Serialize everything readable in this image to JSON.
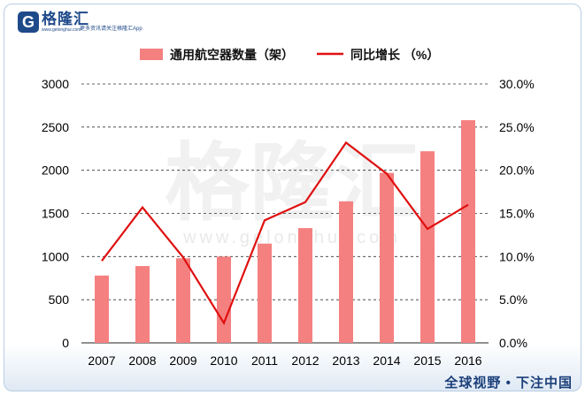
{
  "branding": {
    "logo_letter": "G",
    "logo_name": "格隆汇",
    "logo_url": "www.gelonghui.com",
    "slogan": "更多资讯请关注格隆汇App",
    "watermark_cn": "格隆汇",
    "watermark_en": "www.gelonghui.com",
    "footer": "全球视野 • 下注中国"
  },
  "colors": {
    "bar": "#f58080",
    "line": "#e01010",
    "grid": "#333333"
  },
  "chart_data": {
    "type": "bar",
    "categories": [
      "2007",
      "2008",
      "2009",
      "2010",
      "2011",
      "2012",
      "2013",
      "2014",
      "2015",
      "2016"
    ],
    "series": [
      {
        "name": "通用航空器数量（架）",
        "type": "bar",
        "axis": "left",
        "values": [
          780,
          890,
          980,
          1000,
          1150,
          1330,
          1640,
          1970,
          2220,
          2580
        ]
      },
      {
        "name": "同比增长 （%）",
        "type": "line",
        "axis": "right",
        "values": [
          9.5,
          15.7,
          9.9,
          2.3,
          14.2,
          16.3,
          23.2,
          19.6,
          13.2,
          16.0
        ]
      }
    ],
    "left_axis": {
      "ylim": [
        0,
        3000
      ],
      "ticks": [
        "0",
        "500",
        "1000",
        "1500",
        "2000",
        "2500",
        "3000"
      ]
    },
    "right_axis": {
      "ylim": [
        0,
        30
      ],
      "ticks": [
        "0.0%",
        "5.0%",
        "10.0%",
        "15.0%",
        "20.0%",
        "25.0%",
        "30.0%"
      ]
    },
    "grid": true,
    "legend": "top-center"
  }
}
